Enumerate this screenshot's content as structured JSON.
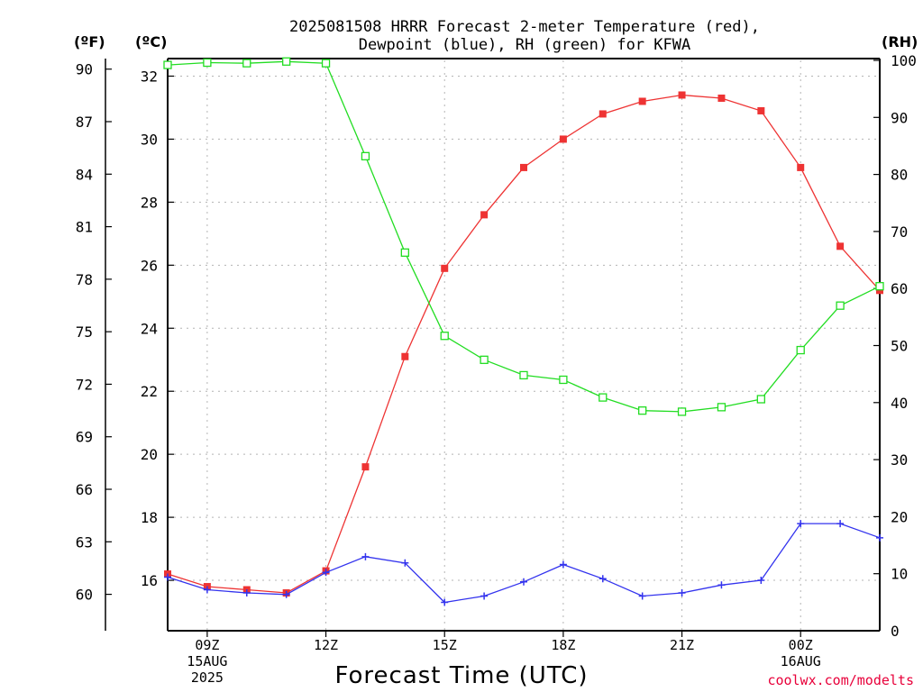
{
  "chart_data": {
    "type": "line",
    "title_line1": "2025081508 HRRR Forecast 2-meter Temperature (red),",
    "title_line2": "Dewpoint (blue), RH (green) for KFWA",
    "xlabel": "Forecast Time (UTC)",
    "credit": "coolwx.com/modelts",
    "units": {
      "fahrenheit": "(ºF)",
      "celsius": "(ºC)",
      "rh": "(RH)"
    },
    "x_hours_utc": [
      8,
      9,
      10,
      11,
      12,
      13,
      14,
      15,
      16,
      17,
      18,
      19,
      20,
      21,
      22,
      23,
      24,
      25,
      26
    ],
    "xlim": [
      8,
      26
    ],
    "x_ticks": [
      {
        "hour": 9,
        "lines": [
          "09Z",
          "15AUG",
          "2025"
        ]
      },
      {
        "hour": 12,
        "lines": [
          "12Z"
        ]
      },
      {
        "hour": 15,
        "lines": [
          "15Z"
        ]
      },
      {
        "hour": 18,
        "lines": [
          "18Z"
        ]
      },
      {
        "hour": 21,
        "lines": [
          "21Z"
        ]
      },
      {
        "hour": 24,
        "lines": [
          "00Z",
          "16AUG"
        ]
      }
    ],
    "ylim_celsius": [
      14.4,
      32.5
    ],
    "y_ticks_celsius": [
      "16",
      "18",
      "20",
      "22",
      "24",
      "26",
      "28",
      "30",
      "32"
    ],
    "y_ticks_fahrenheit": [
      "60",
      "63",
      "66",
      "69",
      "72",
      "75",
      "78",
      "81",
      "84",
      "87",
      "90"
    ],
    "ylim_rh": [
      0,
      100
    ],
    "y_ticks_rh": [
      "0",
      "10",
      "20",
      "30",
      "40",
      "50",
      "60",
      "70",
      "80",
      "90",
      "100"
    ],
    "grid": true,
    "series": [
      {
        "name": "Temperature (red)",
        "axis": "celsius",
        "color": "#ee3333",
        "marker": "filled-square",
        "values": [
          16.2,
          15.8,
          15.7,
          15.6,
          16.3,
          19.6,
          23.1,
          25.9,
          27.6,
          29.1,
          30.0,
          30.8,
          31.2,
          31.4,
          31.3,
          30.9,
          29.1,
          26.6,
          25.2
        ]
      },
      {
        "name": "Dewpoint (blue)",
        "axis": "celsius",
        "color": "#3333ee",
        "marker": "plus",
        "values": [
          16.1,
          15.7,
          15.6,
          15.55,
          16.25,
          16.75,
          16.55,
          15.3,
          15.5,
          15.95,
          16.5,
          16.05,
          15.5,
          15.6,
          15.85,
          16.0,
          17.8,
          17.8,
          17.35
        ]
      },
      {
        "name": "RH (green)",
        "axis": "rh",
        "color": "#22dd22",
        "marker": "open-square",
        "values": [
          99.2,
          99.6,
          99.5,
          99.8,
          99.5,
          83.2,
          66.3,
          51.7,
          47.5,
          44.8,
          44.0,
          40.9,
          38.6,
          38.4,
          39.2,
          40.6,
          49.2,
          57.0,
          60.4
        ]
      }
    ]
  }
}
